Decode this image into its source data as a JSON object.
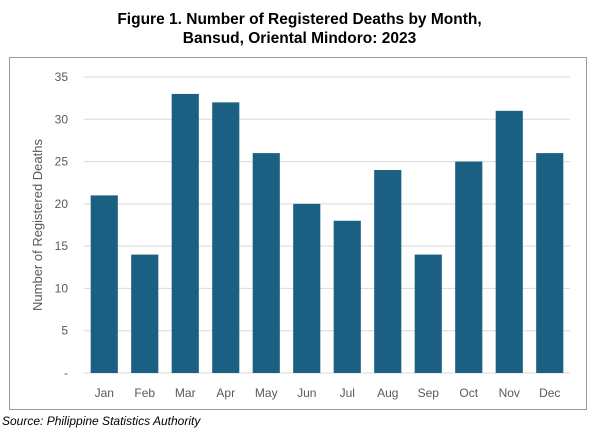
{
  "chart_data": {
    "type": "bar",
    "title_lines": [
      "Figure 1. Number of Registered Deaths by Month,",
      "Bansud, Oriental Mindoro: 2023"
    ],
    "xlabel": "",
    "ylabel": "Number of Registered Deaths",
    "categories": [
      "Jan",
      "Feb",
      "Mar",
      "Apr",
      "May",
      "Jun",
      "Jul",
      "Aug",
      "Sep",
      "Oct",
      "Nov",
      "Dec"
    ],
    "values": [
      21,
      14,
      33,
      32,
      26,
      20,
      18,
      24,
      14,
      25,
      31,
      26
    ],
    "ylim": [
      0,
      35
    ],
    "yticks": [
      "-",
      "5",
      "10",
      "15",
      "20",
      "25",
      "30",
      "35"
    ],
    "grid": true,
    "legend": "none",
    "bar_color": "#1b5f82",
    "grid_color": "#d9d9d9"
  },
  "source": "Source: Philippine Statistics Authority"
}
